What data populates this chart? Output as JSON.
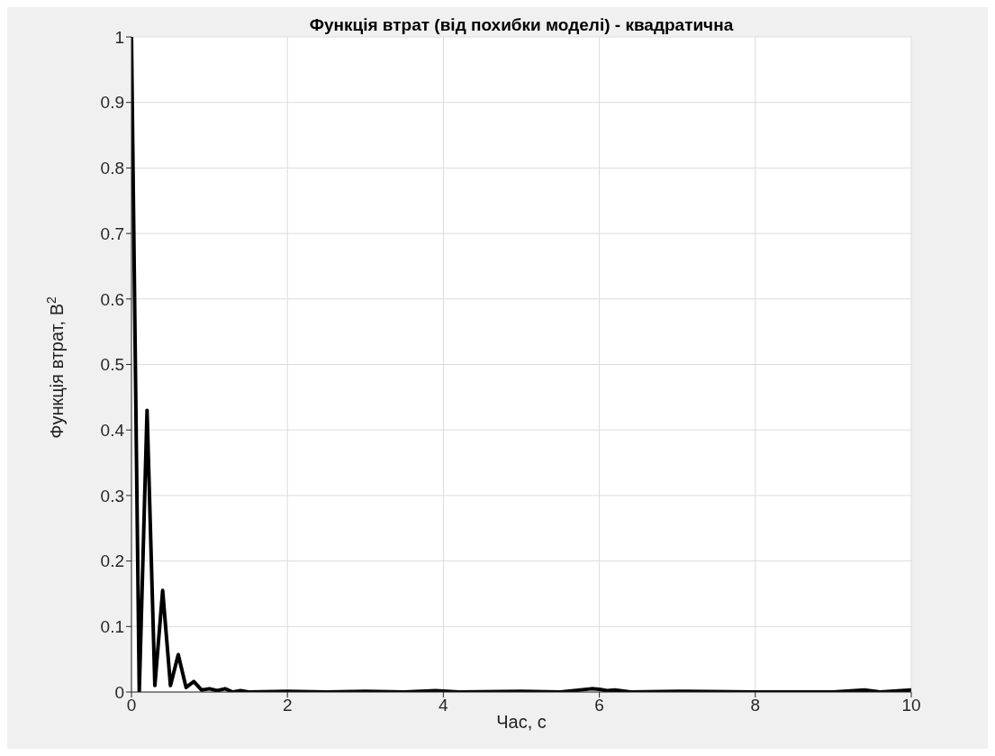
{
  "chart_data": {
    "type": "line",
    "title": "Функція втрат (від похибки моделі) - квадратична",
    "xlabel": "Час, с",
    "ylabel": "Функція втрат, В$^{2}$",
    "x": [
      0,
      0.1,
      0.2,
      0.3,
      0.4,
      0.5,
      0.6,
      0.7,
      0.8,
      0.9,
      1.0,
      1.1,
      1.2,
      1.3,
      1.4,
      1.5,
      2,
      2.5,
      3,
      3.5,
      3.9,
      4.2,
      5,
      5.5,
      5.9,
      6.0,
      6.1,
      6.2,
      6.4,
      7,
      8,
      9,
      9.4,
      9.6,
      10
    ],
    "series": [
      {
        "color": "#000000",
        "values": [
          1,
          0,
          0.43,
          0.01,
          0.155,
          0.01,
          0.057,
          0.007,
          0.016,
          0.003,
          0.005,
          0.002,
          0.005,
          0,
          0.002,
          0,
          0.001,
          0,
          0.001,
          0,
          0.002,
          0,
          0.001,
          0,
          0.005,
          0.004,
          0.002,
          0.003,
          0,
          0.001,
          0,
          0,
          0.003,
          0,
          0.003
        ]
      }
    ],
    "xlim": [
      0,
      10
    ],
    "xticks": [
      0,
      2,
      4,
      6,
      8,
      10
    ],
    "ylim": [
      0,
      1
    ],
    "yticks": [
      0,
      0.1,
      0.2,
      0.3,
      0.4,
      0.5,
      0.6,
      0.7,
      0.8,
      0.9,
      1
    ],
    "grid": true,
    "marker": "none",
    "line_style": "solid",
    "legend": false
  }
}
